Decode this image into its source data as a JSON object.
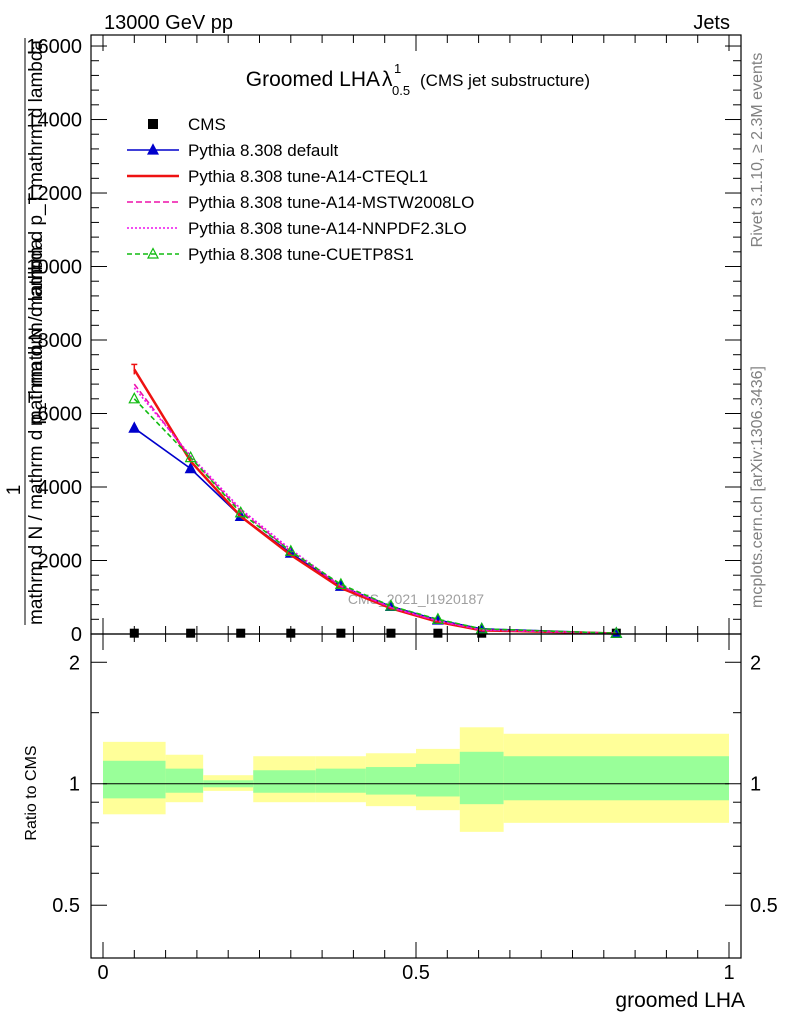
{
  "header": {
    "energy_label": "13000 GeV pp",
    "category_label": "Jets"
  },
  "side_labels": {
    "rivet": "Rivet 3.1.10, ≥ 2.3M events",
    "mcplots": "mcplots.cern.ch [arXiv:1306.3436]"
  },
  "colors": {
    "cms": "#000000",
    "default": "#0000cc",
    "cteql1": "#ee1111",
    "mstw": "#ee11aa",
    "nnpdf": "#ee11ee",
    "cuetp": "#11bb11",
    "band_inner": "#99ff99",
    "band_outer": "#ffff99"
  },
  "chart_data": [
    {
      "type": "line",
      "title": "Groomed LHA",
      "title_symbol": "λ",
      "title_superscript": "1",
      "title_subscript": "0.5",
      "subtitle": "(CMS jet substructure)",
      "watermark": "CMS_2021_I1920187",
      "ylabel_top": "mathrm d N / mathrm d p_T mathrm d lambda",
      "ylabel_one": "1",
      "ylabel_bottom": "mathrm d N / mathrm d p_T mathrm d lambda",
      "xlim": [
        0,
        1
      ],
      "ylim": [
        0,
        16300
      ],
      "y_ticks": [
        0,
        2000,
        4000,
        6000,
        8000,
        10000,
        12000,
        14000,
        16000
      ],
      "y_tick_labels": [
        "0",
        "2000",
        "4000",
        "6000",
        "8000",
        "10000",
        "12000",
        "14000",
        "16000"
      ],
      "legend_position": "top-left",
      "bin_edges": [
        0,
        0.1,
        0.16,
        0.24,
        0.34,
        0.42,
        0.5,
        0.57,
        0.64,
        1.0
      ],
      "x": [
        0.05,
        0.14,
        0.22,
        0.3,
        0.38,
        0.46,
        0.535,
        0.605,
        0.82
      ],
      "series": [
        {
          "name": "CMS",
          "color_key": "cms",
          "marker": "square",
          "values": [
            22,
            22,
            22,
            22,
            22,
            22,
            22,
            22,
            22
          ]
        },
        {
          "name": "Pythia 8.308 default",
          "color_key": "default",
          "marker": "triangle",
          "dash": "",
          "values": [
            5600,
            4500,
            3200,
            2200,
            1300,
            750,
            380,
            140,
            20
          ]
        },
        {
          "name": "Pythia 8.308 tune-A14-CTEQL1",
          "color_key": "cteql1",
          "marker": "none",
          "dash": "",
          "values": [
            7200,
            4700,
            3200,
            2150,
            1250,
            700,
            330,
            100,
            15
          ]
        },
        {
          "name": "Pythia 8.308 tune-A14-MSTW2008LO",
          "color_key": "mstw",
          "marker": "none",
          "dash": "6,3",
          "values": [
            6800,
            4800,
            3350,
            2250,
            1300,
            720,
            350,
            110,
            15
          ]
        },
        {
          "name": "Pythia 8.308 tune-A14-NNPDF2.3LO",
          "color_key": "nnpdf",
          "marker": "none",
          "dash": "2,2",
          "values": [
            6700,
            4850,
            3400,
            2300,
            1320,
            730,
            360,
            115,
            15
          ]
        },
        {
          "name": "Pythia 8.308 tune-CUETP8S1",
          "color_key": "cuetp",
          "marker": "open-triangle",
          "dash": "5,3",
          "values": [
            6400,
            4800,
            3300,
            2250,
            1350,
            760,
            400,
            140,
            20
          ]
        }
      ]
    },
    {
      "type": "area",
      "ylabel": "Ratio to CMS",
      "xlabel": "groomed LHA",
      "xlim": [
        0,
        1
      ],
      "ylim": [
        0.37,
        2.35
      ],
      "x_ticks": [
        0,
        0.5,
        1
      ],
      "x_tick_labels": [
        "0",
        "0.5",
        "1"
      ],
      "y_ticks": [
        0.5,
        1,
        2
      ],
      "y_tick_labels": [
        "0.5",
        "1",
        "2"
      ],
      "bin_edges": [
        0,
        0.1,
        0.16,
        0.24,
        0.34,
        0.42,
        0.5,
        0.57,
        0.64,
        1.0
      ],
      "inner_band": {
        "low": [
          0.92,
          0.95,
          0.98,
          0.95,
          0.95,
          0.94,
          0.93,
          0.89,
          0.91
        ],
        "high": [
          1.14,
          1.09,
          1.02,
          1.08,
          1.09,
          1.1,
          1.12,
          1.2,
          1.17
        ]
      },
      "outer_band": {
        "low": [
          0.84,
          0.9,
          0.96,
          0.9,
          0.9,
          0.88,
          0.86,
          0.76,
          0.8
        ],
        "high": [
          1.27,
          1.18,
          1.05,
          1.17,
          1.17,
          1.19,
          1.22,
          1.38,
          1.33
        ]
      },
      "reference": 1
    }
  ]
}
